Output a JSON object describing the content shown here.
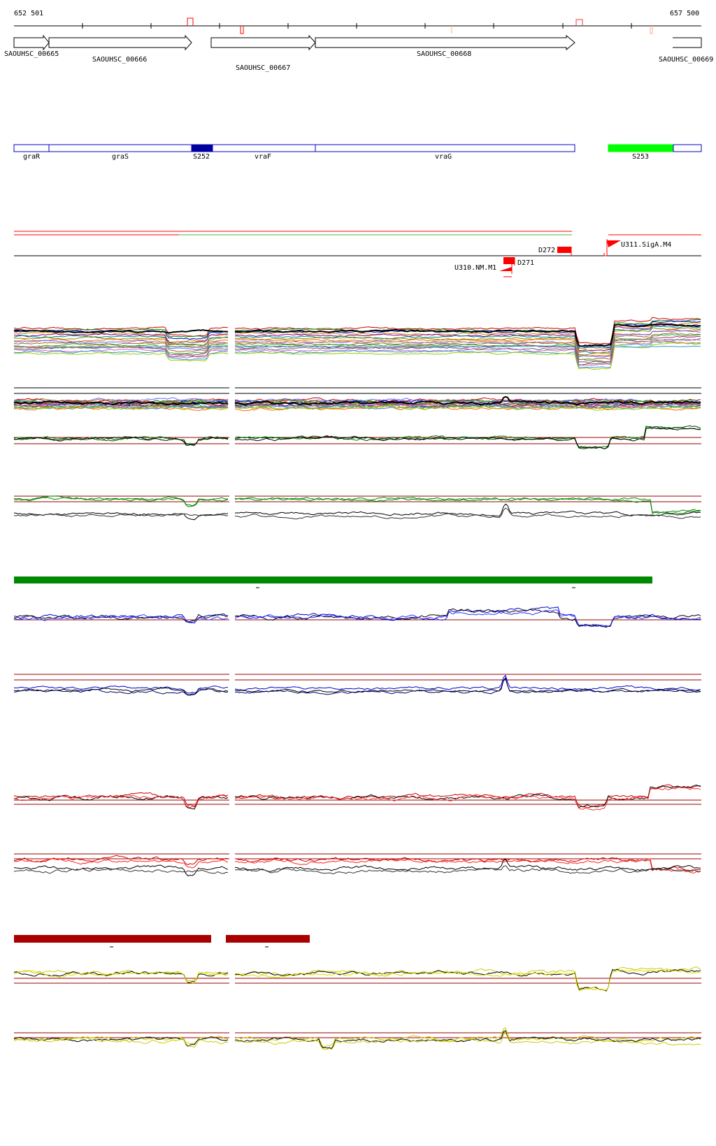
{
  "coordinates": {
    "start_label": "652 501",
    "end_label": "657 500"
  },
  "genes": [
    {
      "label": "SAOUHSC_00665"
    },
    {
      "label": "SAOUHSC_00666"
    },
    {
      "label": "SAOUHSC_00667"
    },
    {
      "label": "SAOUHSC_00668"
    },
    {
      "label": "SAOUHSC_00669"
    }
  ],
  "annotations": [
    {
      "label": "graR",
      "filled": false
    },
    {
      "label": "graS",
      "filled": false
    },
    {
      "label": "S252",
      "filled": true,
      "color": "#000099"
    },
    {
      "label": "vraF",
      "filled": false
    },
    {
      "label": "vraG",
      "filled": false
    },
    {
      "label": "S253",
      "filled": true,
      "color": "#00ff00"
    }
  ],
  "features": [
    {
      "label": "D272"
    },
    {
      "label": "U311.SigA.M4"
    },
    {
      "label": "D271"
    },
    {
      "label": "U310.NM.M1"
    }
  ],
  "colors": {
    "gene_outline": "#000000",
    "annotation_outline": "#0000cc",
    "feature_red": "#ff0000",
    "threshold": "#990000",
    "green_track": "#008800",
    "blue_track": "#0000cc",
    "red_track": "#cc0000",
    "yellow_track": "#cccc00",
    "green_bar": "#008800",
    "dark_red_bar": "#aa0000"
  }
}
